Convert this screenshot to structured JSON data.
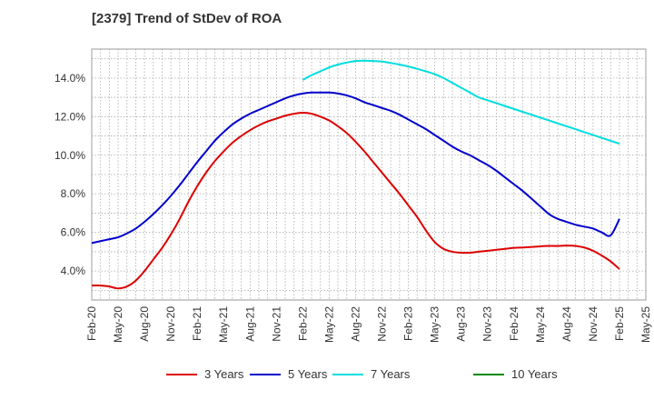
{
  "title": "[2379]  Trend of StDev of ROA",
  "chart_data": {
    "type": "line",
    "title": "[2379]  Trend of StDev of ROA",
    "xlabel": "",
    "ylabel": "",
    "ylim": [
      2.5,
      15.5
    ],
    "y_ticks": [
      "4.0%",
      "6.0%",
      "8.0%",
      "10.0%",
      "12.0%",
      "14.0%"
    ],
    "y_tick_values": [
      4,
      6,
      8,
      10,
      12,
      14
    ],
    "x_ticks": [
      "Feb-20",
      "May-20",
      "Aug-20",
      "Nov-20",
      "Feb-21",
      "May-21",
      "Aug-21",
      "Nov-21",
      "Feb-22",
      "May-22",
      "Aug-22",
      "Nov-22",
      "Feb-23",
      "May-23",
      "Aug-23",
      "Nov-23",
      "Feb-24",
      "May-24",
      "Aug-24",
      "Nov-24",
      "Feb-25",
      "May-25"
    ],
    "grid": true,
    "legend_position": "bottom",
    "series": [
      {
        "name": "3 Years",
        "color": "#dd0000",
        "x": [
          "Feb-20",
          "Mar-20",
          "Apr-20",
          "May-20",
          "Jun-20",
          "Jul-20",
          "Aug-20",
          "Sep-20",
          "Oct-20",
          "Nov-20",
          "Dec-20",
          "Jan-21",
          "Feb-21",
          "Mar-21",
          "Apr-21",
          "May-21",
          "Jun-21",
          "Jul-21",
          "Aug-21",
          "Sep-21",
          "Oct-21",
          "Nov-21",
          "Dec-21",
          "Jan-22",
          "Feb-22",
          "Mar-22",
          "Apr-22",
          "May-22",
          "Jun-22",
          "Jul-22",
          "Aug-22",
          "Sep-22",
          "Oct-22",
          "Nov-22",
          "Dec-22",
          "Jan-23",
          "Feb-23",
          "Mar-23",
          "Apr-23",
          "May-23",
          "Jun-23",
          "Jul-23",
          "Aug-23",
          "Sep-23",
          "Oct-23",
          "Nov-23",
          "Dec-23",
          "Jan-24",
          "Feb-24",
          "Mar-24",
          "Apr-24",
          "May-24",
          "Jun-24",
          "Jul-24",
          "Aug-24",
          "Sep-24",
          "Oct-24",
          "Nov-24",
          "Dec-24",
          "Jan-25",
          "Feb-25"
        ],
        "values": [
          3.25,
          3.25,
          3.2,
          3.1,
          3.2,
          3.5,
          4.0,
          4.6,
          5.2,
          5.9,
          6.7,
          7.6,
          8.4,
          9.1,
          9.7,
          10.2,
          10.65,
          11.0,
          11.3,
          11.55,
          11.75,
          11.9,
          12.05,
          12.15,
          12.2,
          12.15,
          12.0,
          11.8,
          11.5,
          11.15,
          10.7,
          10.2,
          9.65,
          9.1,
          8.55,
          8.0,
          7.4,
          6.8,
          6.1,
          5.5,
          5.15,
          5.0,
          4.95,
          4.95,
          5.0,
          5.05,
          5.1,
          5.15,
          5.2,
          5.22,
          5.25,
          5.28,
          5.3,
          5.3,
          5.32,
          5.3,
          5.22,
          5.05,
          4.8,
          4.5,
          4.1
        ]
      },
      {
        "name": "5 Years",
        "color": "#0000cc",
        "x": [
          "Feb-20",
          "Mar-20",
          "Apr-20",
          "May-20",
          "Jun-20",
          "Jul-20",
          "Aug-20",
          "Sep-20",
          "Oct-20",
          "Nov-20",
          "Dec-20",
          "Jan-21",
          "Feb-21",
          "Mar-21",
          "Apr-21",
          "May-21",
          "Jun-21",
          "Jul-21",
          "Aug-21",
          "Sep-21",
          "Oct-21",
          "Nov-21",
          "Dec-21",
          "Jan-22",
          "Feb-22",
          "Mar-22",
          "Apr-22",
          "May-22",
          "Jun-22",
          "Jul-22",
          "Aug-22",
          "Sep-22",
          "Oct-22",
          "Nov-22",
          "Dec-22",
          "Jan-23",
          "Feb-23",
          "Mar-23",
          "Apr-23",
          "May-23",
          "Jun-23",
          "Jul-23",
          "Aug-23",
          "Sep-23",
          "Oct-23",
          "Nov-23",
          "Dec-23",
          "Jan-24",
          "Feb-24",
          "Mar-24",
          "Apr-24",
          "May-24",
          "Jun-24",
          "Jul-24",
          "Aug-24",
          "Sep-24",
          "Oct-24",
          "Nov-24",
          "Dec-24",
          "Jan-25",
          "Feb-25"
        ],
        "values": [
          5.45,
          5.55,
          5.65,
          5.75,
          5.95,
          6.2,
          6.55,
          6.95,
          7.4,
          7.9,
          8.45,
          9.05,
          9.65,
          10.2,
          10.75,
          11.2,
          11.6,
          11.9,
          12.15,
          12.35,
          12.55,
          12.75,
          12.95,
          13.1,
          13.2,
          13.25,
          13.25,
          13.25,
          13.2,
          13.1,
          12.95,
          12.75,
          12.6,
          12.45,
          12.3,
          12.1,
          11.85,
          11.6,
          11.35,
          11.05,
          10.75,
          10.45,
          10.2,
          10.0,
          9.75,
          9.5,
          9.2,
          8.85,
          8.5,
          8.15,
          7.75,
          7.35,
          6.95,
          6.7,
          6.55,
          6.4,
          6.3,
          6.2,
          6.0,
          5.85,
          6.7
        ]
      },
      {
        "name": "7 Years",
        "color": "#00dddd",
        "x": [
          "Feb-22",
          "Mar-22",
          "Apr-22",
          "May-22",
          "Jun-22",
          "Jul-22",
          "Aug-22",
          "Sep-22",
          "Oct-22",
          "Nov-22",
          "Dec-22",
          "Jan-23",
          "Feb-23",
          "Mar-23",
          "Apr-23",
          "May-23",
          "Jun-23",
          "Jul-23",
          "Aug-23",
          "Sep-23",
          "Oct-23",
          "Nov-23",
          "Dec-23",
          "Jan-24",
          "Feb-24",
          "Mar-24",
          "Apr-24",
          "May-24",
          "Jun-24",
          "Jul-24",
          "Aug-24",
          "Sep-24",
          "Oct-24",
          "Nov-24",
          "Dec-24",
          "Jan-25",
          "Feb-25"
        ],
        "values": [
          13.9,
          14.15,
          14.35,
          14.55,
          14.7,
          14.8,
          14.88,
          14.9,
          14.88,
          14.85,
          14.78,
          14.7,
          14.6,
          14.48,
          14.35,
          14.2,
          14.0,
          13.75,
          13.5,
          13.25,
          13.0,
          12.85,
          12.7,
          12.55,
          12.4,
          12.25,
          12.1,
          11.95,
          11.8,
          11.65,
          11.5,
          11.35,
          11.2,
          11.05,
          10.9,
          10.75,
          10.6
        ]
      },
      {
        "name": "10 Years",
        "color": "#008800",
        "x": [],
        "values": []
      }
    ]
  }
}
